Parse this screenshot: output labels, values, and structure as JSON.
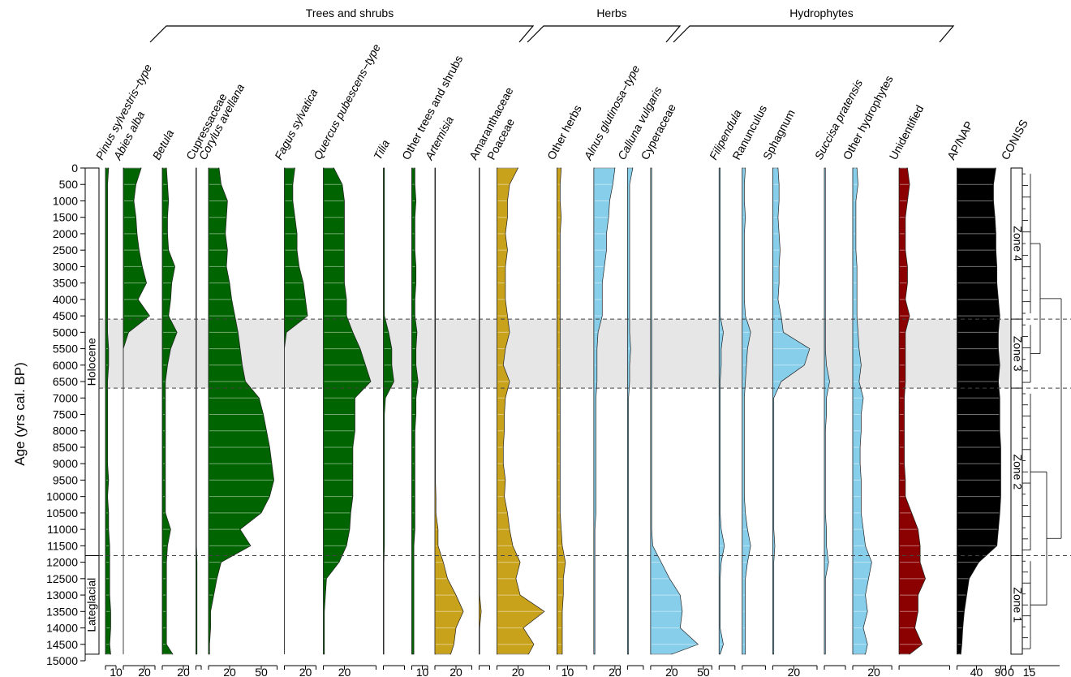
{
  "chart_data": {
    "type": "pollen",
    "ylabel": "Age (yrs cal. BP)",
    "ylim": [
      0,
      15000
    ],
    "yticks": [
      0,
      500,
      1000,
      1500,
      2000,
      2500,
      3000,
      3500,
      4000,
      4500,
      5000,
      5500,
      6000,
      6500,
      7000,
      7500,
      8000,
      8500,
      9000,
      9500,
      10000,
      10500,
      11000,
      11500,
      12000,
      12500,
      13000,
      13500,
      14000,
      14500,
      15000
    ],
    "ages": [
      0,
      500,
      1000,
      1500,
      2000,
      2500,
      3000,
      3500,
      4000,
      4500,
      5000,
      5500,
      6000,
      6500,
      7000,
      7500,
      8000,
      8500,
      9000,
      9500,
      10000,
      10500,
      11000,
      11500,
      12000,
      12500,
      13000,
      13500,
      14000,
      14500,
      14800
    ],
    "groups": [
      {
        "name": "Trees and shrubs",
        "color": "#1a7a1a"
      },
      {
        "name": "Herbs",
        "color": "#c9a21b"
      },
      {
        "name": "Hydrophytes",
        "color": "#7ec4e6"
      }
    ],
    "periods": [
      {
        "label": "Holocene",
        "from": 0,
        "to": 11800
      },
      {
        "label": "Lateglacial",
        "from": 11800,
        "to": 14800
      }
    ],
    "zones": [
      {
        "label": "Zone 4",
        "from": 0,
        "to": 4600,
        "shaded": false
      },
      {
        "label": "Zone 3",
        "from": 4600,
        "to": 6700,
        "shaded": true
      },
      {
        "label": "Zone 2",
        "from": 6700,
        "to": 11800,
        "shaded": false
      },
      {
        "label": "Zone 1",
        "from": 11800,
        "to": 14800,
        "shaded": false
      }
    ],
    "columns": [
      {
        "name": "Pinus sylvestris−type",
        "italic": true,
        "color": "#006400",
        "xlim": [
          0,
          10
        ],
        "xticks": [
          10
        ],
        "values": [
          3,
          2,
          2,
          2,
          2,
          2,
          2,
          2,
          2,
          2,
          2,
          3,
          3,
          2,
          2,
          2,
          2,
          2,
          2,
          3,
          2,
          3,
          3,
          4,
          4,
          4,
          4,
          5,
          5,
          4,
          5
        ]
      },
      {
        "name": "Abies alba",
        "italic": true,
        "color": "#006400",
        "xlim": [
          0,
          30
        ],
        "xticks": [
          20
        ],
        "values": [
          17,
          12,
          10,
          12,
          13,
          15,
          18,
          22,
          14,
          25,
          5,
          0,
          0,
          0,
          0,
          0,
          0,
          0,
          0,
          0,
          0,
          0,
          0,
          0,
          0,
          0,
          0,
          0,
          0,
          0,
          0
        ]
      },
      {
        "name": "Betula",
        "italic": true,
        "color": "#006400",
        "xlim": [
          0,
          25
        ],
        "xticks": [
          20
        ],
        "values": [
          4,
          5,
          6,
          5,
          5,
          6,
          12,
          9,
          8,
          6,
          14,
          8,
          5,
          3,
          3,
          3,
          3,
          3,
          3,
          3,
          3,
          3,
          8,
          5,
          4,
          4,
          4,
          4,
          4,
          4,
          10
        ]
      },
      {
        "name": "Cupressaceae",
        "italic": false,
        "color": "#006400",
        "xlim": [
          0,
          5
        ],
        "values": [
          0.5,
          0.5,
          0.5,
          0.5,
          0.5,
          0.5,
          0.5,
          0.5,
          0.5,
          0.5,
          0.5,
          0.5,
          0.5,
          0.5,
          0.5,
          0.5,
          0.5,
          0.5,
          0.5,
          0.5,
          0.5,
          0.5,
          0.5,
          0.5,
          1,
          1,
          1,
          1,
          1,
          1,
          1
        ]
      },
      {
        "name": "Corylus avellana",
        "italic": true,
        "color": "#006400",
        "xlim": [
          0,
          65
        ],
        "xticks": [
          20,
          50
        ],
        "values": [
          10,
          12,
          18,
          17,
          16,
          18,
          17,
          20,
          22,
          25,
          28,
          30,
          32,
          35,
          48,
          52,
          55,
          58,
          60,
          62,
          58,
          50,
          30,
          40,
          12,
          8,
          5,
          2,
          2,
          1,
          1
        ]
      },
      {
        "name": "Fagus sylvatica",
        "italic": true,
        "color": "#006400",
        "xlim": [
          0,
          30
        ],
        "xticks": [
          20
        ],
        "values": [
          10,
          8,
          8,
          10,
          12,
          12,
          14,
          18,
          20,
          22,
          2,
          0,
          0,
          0,
          0,
          0,
          0,
          0,
          0,
          0,
          0,
          0,
          0,
          0,
          0,
          0,
          0,
          0,
          0,
          0,
          0
        ]
      },
      {
        "name": "Quercus pubescens−type",
        "italic": true,
        "color": "#006400",
        "xlim": [
          0,
          50
        ],
        "xticks": [
          20
        ],
        "values": [
          10,
          18,
          20,
          20,
          20,
          20,
          20,
          20,
          22,
          22,
          28,
          35,
          40,
          45,
          30,
          30,
          30,
          28,
          28,
          28,
          28,
          26,
          25,
          22,
          15,
          3,
          2,
          1,
          1,
          1,
          1
        ]
      },
      {
        "name": "Tilia",
        "italic": true,
        "color": "#006400",
        "xlim": [
          0,
          20
        ],
        "values": [
          1,
          1,
          1,
          1,
          1,
          1,
          1,
          1,
          1,
          1,
          5,
          8,
          8,
          10,
          2,
          1,
          1,
          1,
          1,
          1,
          1,
          1,
          1,
          1,
          0.5,
          0.5,
          0.5,
          0.5,
          0.5,
          0.5,
          0.5
        ]
      },
      {
        "name": "Other trees and shrubs",
        "italic": false,
        "color": "#006400",
        "xlim": [
          0,
          15
        ],
        "xticks": [
          10
        ],
        "values": [
          3,
          3,
          4,
          3,
          3,
          3,
          4,
          4,
          3,
          3,
          5,
          4,
          4,
          6,
          4,
          4,
          3,
          3,
          3,
          3,
          3,
          3,
          3,
          2,
          2,
          2,
          2,
          2,
          2,
          2,
          2
        ]
      },
      {
        "name": "Artemisia",
        "italic": true,
        "color": "#c9a21b",
        "xlim": [
          0,
          35
        ],
        "xticks": [
          20
        ],
        "values": [
          0.5,
          0.5,
          0.5,
          0.5,
          0.5,
          0.5,
          0.5,
          0.5,
          0.5,
          0.5,
          0.5,
          0.5,
          0.5,
          0.5,
          0.5,
          0.5,
          0.5,
          0.5,
          0.5,
          0.5,
          1,
          1,
          3,
          3,
          8,
          12,
          20,
          27,
          20,
          18,
          15
        ]
      },
      {
        "name": "Amaranthaceae",
        "italic": false,
        "color": "#c9a21b",
        "xlim": [
          0,
          10
        ],
        "values": [
          0.5,
          0.5,
          0.5,
          0.5,
          0.5,
          0.5,
          0.5,
          0.5,
          0.5,
          0.5,
          0.5,
          0.5,
          0.5,
          0.5,
          0.5,
          0.5,
          0.5,
          0.5,
          0.5,
          0.5,
          0.5,
          0.5,
          0.5,
          0.5,
          0.5,
          0.5,
          0.5,
          2,
          0.5,
          0.5,
          0.5
        ]
      },
      {
        "name": "Poaceae",
        "italic": false,
        "color": "#c9a21b",
        "xlim": [
          0,
          50
        ],
        "xticks": [
          20
        ],
        "values": [
          20,
          12,
          10,
          10,
          8,
          10,
          8,
          8,
          8,
          10,
          12,
          8,
          6,
          12,
          8,
          7,
          7,
          6,
          6,
          8,
          7,
          10,
          12,
          15,
          22,
          18,
          22,
          45,
          25,
          35,
          30
        ]
      },
      {
        "name": "Other herbs",
        "italic": false,
        "color": "#c9a21b",
        "xlim": [
          0,
          28
        ],
        "xticks": [
          10
        ],
        "values": [
          4,
          3,
          3,
          4,
          3,
          3,
          3,
          3,
          3,
          3,
          3,
          3,
          3,
          3,
          3,
          3,
          3,
          3,
          3,
          3,
          3,
          3,
          4,
          5,
          8,
          6,
          6,
          5,
          5,
          5,
          5
        ]
      },
      {
        "name": "Alnus glutinosa−type",
        "italic": true,
        "color": "#87ceeb",
        "xlim": [
          0,
          25
        ],
        "xticks": [
          20
        ],
        "values": [
          20,
          18,
          15,
          14,
          12,
          12,
          10,
          8,
          8,
          8,
          4,
          3,
          3,
          3,
          2,
          2,
          2,
          2,
          2,
          2,
          2,
          2,
          1,
          1,
          1,
          1,
          1,
          1,
          1,
          1,
          1
        ]
      },
      {
        "name": "Calluna vulgaris",
        "italic": true,
        "color": "#87ceeb",
        "xlim": [
          0,
          15
        ],
        "values": [
          5,
          2,
          2,
          2,
          2,
          2,
          2,
          2,
          2,
          2,
          2,
          3,
          2,
          2,
          1,
          1,
          1,
          1,
          1,
          1,
          1,
          1,
          1,
          1,
          1,
          1,
          1,
          1,
          1,
          1,
          1
        ]
      },
      {
        "name": "Cyperaceae",
        "italic": false,
        "color": "#87ceeb",
        "xlim": [
          0,
          58
        ],
        "xticks": [
          20,
          50
        ],
        "values": [
          1,
          1,
          1,
          1,
          1,
          1,
          1,
          1,
          1,
          1,
          1,
          1,
          1,
          1,
          1,
          1,
          1,
          1,
          1,
          1,
          1,
          1,
          1,
          2,
          10,
          18,
          28,
          30,
          28,
          45,
          20
        ]
      },
      {
        "name": "Filipendula",
        "italic": true,
        "color": "#87ceeb",
        "xlim": [
          0,
          15
        ],
        "values": [
          1,
          1,
          1,
          1,
          1,
          1,
          1,
          1,
          1,
          1,
          4,
          2,
          2,
          1,
          1,
          1,
          1,
          1,
          1,
          1,
          1,
          1,
          2,
          5,
          2,
          1,
          1,
          1,
          1,
          4,
          1
        ]
      },
      {
        "name": "Ranunculus",
        "italic": false,
        "color": "#87ceeb",
        "xlim": [
          0,
          22
        ],
        "values": [
          3,
          2,
          2,
          3,
          2,
          2,
          2,
          2,
          2,
          3,
          8,
          5,
          4,
          3,
          2,
          2,
          2,
          2,
          2,
          2,
          2,
          3,
          5,
          8,
          5,
          3,
          3,
          3,
          3,
          3,
          3
        ]
      },
      {
        "name": "Sphagnum",
        "italic": false,
        "color": "#87ceeb",
        "xlim": [
          0,
          42
        ],
        "xticks": [
          20
        ],
        "values": [
          5,
          6,
          6,
          5,
          6,
          7,
          6,
          6,
          5,
          8,
          10,
          35,
          30,
          8,
          1,
          1,
          1,
          1,
          1,
          1,
          1,
          1,
          1,
          2,
          1,
          1,
          1,
          1,
          1,
          1,
          1
        ]
      },
      {
        "name": "Succisa pratensis",
        "italic": true,
        "color": "#87ceeb",
        "xlim": [
          0,
          20
        ],
        "values": [
          1,
          1,
          1,
          1,
          1,
          1,
          1,
          1,
          1,
          1,
          1,
          1,
          2,
          5,
          2,
          2,
          1,
          1,
          1,
          1,
          1,
          1,
          2,
          2,
          4,
          1,
          1,
          1,
          1,
          1,
          1
        ]
      },
      {
        "name": "Other hydrophytes",
        "italic": false,
        "color": "#87ceeb",
        "xlim": [
          0,
          37
        ],
        "xticks": [
          20
        ],
        "values": [
          4,
          5,
          3,
          3,
          3,
          3,
          4,
          4,
          4,
          4,
          5,
          6,
          8,
          6,
          10,
          8,
          8,
          7,
          7,
          8,
          8,
          8,
          10,
          12,
          18,
          15,
          12,
          14,
          10,
          14,
          12
        ]
      },
      {
        "name": "Unidentified",
        "italic": false,
        "color": "#8b0000",
        "xlim": [
          0,
          48
        ],
        "values": [
          8,
          10,
          8,
          6,
          6,
          6,
          8,
          8,
          6,
          10,
          6,
          6,
          6,
          6,
          5,
          5,
          5,
          5,
          5,
          6,
          6,
          12,
          18,
          20,
          20,
          25,
          18,
          18,
          15,
          22,
          10
        ]
      },
      {
        "name": "AP/NAP",
        "italic": false,
        "color": "#000000",
        "xlim": [
          0,
          100
        ],
        "xticks": [
          40,
          90
        ],
        "values": [
          80,
          75,
          75,
          78,
          80,
          80,
          82,
          82,
          85,
          88,
          85,
          85,
          88,
          85,
          88,
          88,
          88,
          90,
          90,
          90,
          90,
          88,
          85,
          82,
          45,
          25,
          20,
          15,
          12,
          10,
          8
        ]
      }
    ],
    "coniss": {
      "name": "CONISS",
      "xlim": [
        0,
        40
      ],
      "xticks": [
        0,
        15
      ]
    }
  }
}
